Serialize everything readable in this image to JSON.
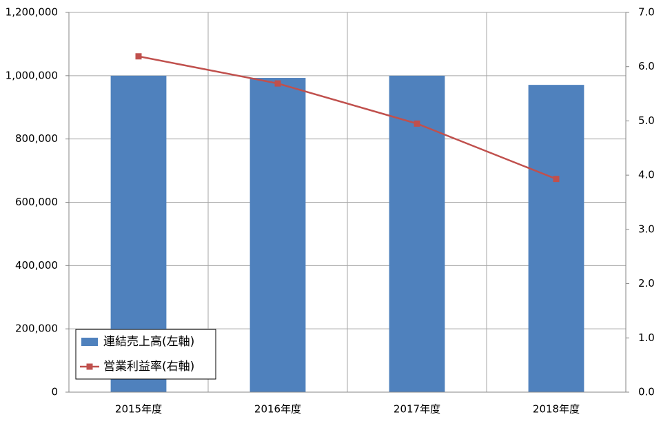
{
  "chart_data": {
    "type": "bar",
    "categories": [
      "2015年度",
      "2016年度",
      "2017年度",
      "2018年度"
    ],
    "series": [
      {
        "name": "連結売上高(左軸)",
        "type": "bar",
        "color": "#4f81bd",
        "values": [
          1000000,
          993000,
          1000000,
          971000
        ]
      },
      {
        "name": "営業利益率(右軸)",
        "type": "line",
        "axis": "y2",
        "color": "#c0504d",
        "values": [
          6.19,
          5.69,
          4.95,
          3.93
        ]
      }
    ],
    "ylim": [
      0,
      1200000
    ],
    "yticks": [
      0,
      {
        "value": 200000,
        "label": "200,000"
      },
      {
        "value": 400000,
        "label": "400,000"
      },
      {
        "value": 600000,
        "label": "600,000"
      },
      {
        "value": 800000,
        "label": "800,000"
      },
      {
        "value": 1000000,
        "label": "1,000,000"
      },
      {
        "value": 1200000,
        "label": "1,200,000"
      }
    ],
    "y2lim": [
      0,
      7
    ],
    "y2ticks": [
      {
        "value": 0,
        "label": "0.0"
      },
      {
        "value": 1,
        "label": "1.0"
      },
      {
        "value": 2,
        "label": "2.0"
      },
      {
        "value": 3,
        "label": "3.0"
      },
      {
        "value": 4,
        "label": "4.0"
      },
      {
        "value": 5,
        "label": "5.0"
      },
      {
        "value": 6,
        "label": "6.0"
      },
      {
        "value": 7,
        "label": "7.0"
      }
    ],
    "grid": true,
    "legend": "lower-left"
  }
}
